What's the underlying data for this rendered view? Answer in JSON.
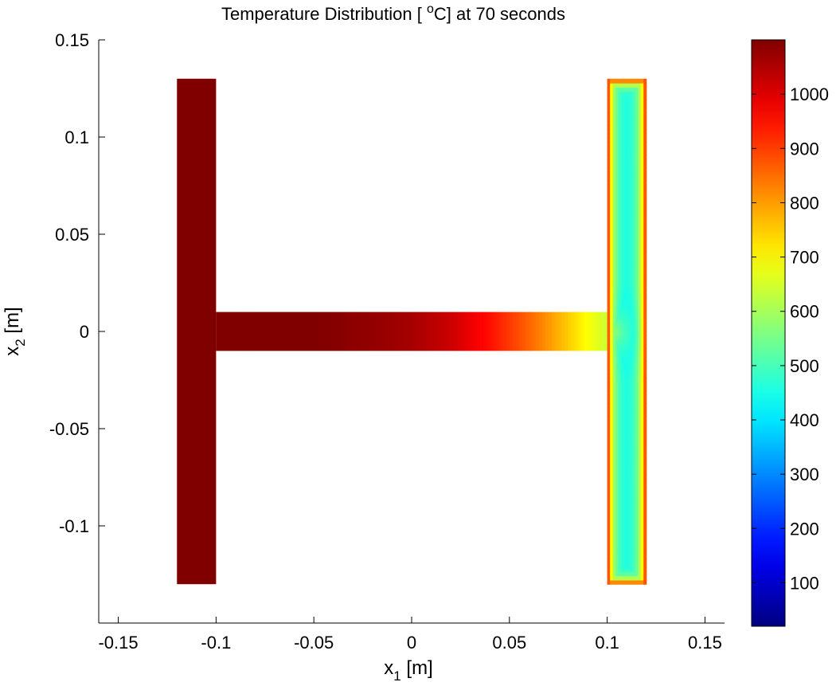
{
  "chart_data": {
    "type": "heatmap",
    "title": {
      "prefix": "Temperature Distribution [ ",
      "superscript": "o",
      "suffix": "C] at 70 seconds"
    },
    "xlabel": {
      "base": "x",
      "subscript": "1",
      "suffix": " [m]"
    },
    "ylabel": {
      "base": "x",
      "subscript": "2",
      "suffix": " [m]"
    },
    "xlim": [
      -0.16,
      0.16
    ],
    "ylim": [
      -0.15,
      0.15
    ],
    "xticks": [
      -0.15,
      -0.1,
      -0.05,
      0,
      0.05,
      0.1,
      0.15
    ],
    "xtick_labels": [
      "-0.15",
      "-0.1",
      "-0.05",
      "0",
      "0.05",
      "0.1",
      "0.15"
    ],
    "yticks": [
      0.15,
      0.1,
      0.05,
      0,
      -0.05,
      -0.1
    ],
    "ytick_labels": [
      "0.15",
      "0.1",
      "0.05",
      "0",
      "-0.05",
      "-0.1"
    ],
    "colormap": "jet",
    "color_range": [
      20,
      1100
    ],
    "colorbar_ticks": [
      1000,
      900,
      800,
      700,
      600,
      500,
      400,
      300,
      200,
      100
    ],
    "colorbar_tick_labels": [
      "1000",
      "900",
      "800",
      "700",
      "600",
      "500",
      "400",
      "300",
      "200",
      "100"
    ],
    "geometry": {
      "left_flange": {
        "x": [
          -0.12,
          -0.1
        ],
        "y": [
          -0.13,
          0.13
        ],
        "temperature": 1100
      },
      "web": {
        "x": [
          -0.1,
          0.1
        ],
        "y": [
          -0.01,
          0.01
        ]
      },
      "right_flange": {
        "x": [
          0.1,
          0.12
        ],
        "y": [
          -0.13,
          0.13
        ]
      }
    },
    "web_temperature_profile": {
      "x": [
        -0.1,
        -0.05,
        -0.02,
        0.0,
        0.02,
        0.04,
        0.06,
        0.08,
        0.09,
        0.1
      ],
      "t": [
        1100,
        1100,
        1080,
        1060,
        1020,
        950,
        860,
        750,
        690,
        640
      ]
    },
    "right_flange_temperature": {
      "edge": 1000,
      "interior": 440,
      "center": 400
    }
  }
}
